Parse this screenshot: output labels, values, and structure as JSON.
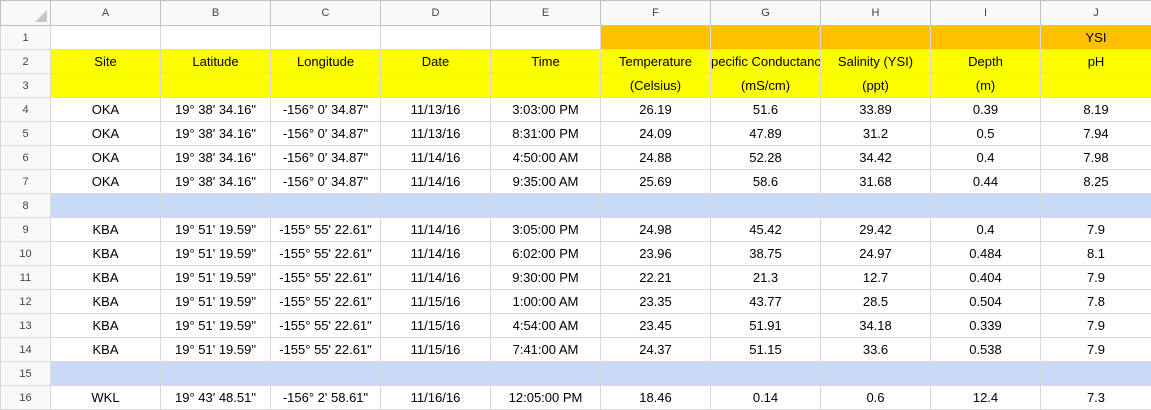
{
  "columns": [
    "A",
    "B",
    "C",
    "D",
    "E",
    "F",
    "G",
    "H",
    "I",
    "J"
  ],
  "row_numbers": [
    "1",
    "2",
    "3",
    "4",
    "5",
    "6",
    "7",
    "8",
    "9",
    "10",
    "11",
    "12",
    "13",
    "14",
    "15",
    "16"
  ],
  "header": {
    "ysi_label": "YSI",
    "row2": [
      "Site",
      "Latitude",
      "Longitude",
      "Date",
      "Time",
      "Temperature",
      "pecific Conductanc",
      "Salinity (YSI)",
      "Depth",
      "pH"
    ],
    "row3": [
      "",
      "",
      "",
      "",
      "",
      "(Celsius)",
      "(mS/cm)",
      "(ppt)",
      "(m)",
      ""
    ]
  },
  "rows": {
    "r4": [
      "OKA",
      "19° 38' 34.16\"",
      "-156° 0' 34.87\"",
      "11/13/16",
      "3:03:00 PM",
      "26.19",
      "51.6",
      "33.89",
      "0.39",
      "8.19"
    ],
    "r5": [
      "OKA",
      "19° 38' 34.16\"",
      "-156° 0' 34.87\"",
      "11/13/16",
      "8:31:00 PM",
      "24.09",
      "47.89",
      "31.2",
      "0.5",
      "7.94"
    ],
    "r6": [
      "OKA",
      "19° 38' 34.16\"",
      "-156° 0' 34.87\"",
      "11/14/16",
      "4:50:00 AM",
      "24.88",
      "52.28",
      "34.42",
      "0.4",
      "7.98"
    ],
    "r7": [
      "OKA",
      "19° 38' 34.16\"",
      "-156° 0' 34.87\"",
      "11/14/16",
      "9:35:00 AM",
      "25.69",
      "58.6",
      "31.68",
      "0.44",
      "8.25"
    ],
    "r9": [
      "KBA",
      "19° 51' 19.59\"",
      "-155° 55' 22.61\"",
      "11/14/16",
      "3:05:00 PM",
      "24.98",
      "45.42",
      "29.42",
      "0.4",
      "7.9"
    ],
    "r10": [
      "KBA",
      "19° 51' 19.59\"",
      "-155° 55' 22.61\"",
      "11/14/16",
      "6:02:00 PM",
      "23.96",
      "38.75",
      "24.97",
      "0.484",
      "8.1"
    ],
    "r11": [
      "KBA",
      "19° 51' 19.59\"",
      "-155° 55' 22.61\"",
      "11/14/16",
      "9:30:00 PM",
      "22.21",
      "21.3",
      "12.7",
      "0.404",
      "7.9"
    ],
    "r12": [
      "KBA",
      "19° 51' 19.59\"",
      "-155° 55' 22.61\"",
      "11/15/16",
      "1:00:00 AM",
      "23.35",
      "43.77",
      "28.5",
      "0.504",
      "7.8"
    ],
    "r13": [
      "KBA",
      "19° 51' 19.59\"",
      "-155° 55' 22.61\"",
      "11/15/16",
      "4:54:00 AM",
      "23.45",
      "51.91",
      "34.18",
      "0.339",
      "7.9"
    ],
    "r14": [
      "KBA",
      "19° 51' 19.59\"",
      "-155° 55' 22.61\"",
      "11/15/16",
      "7:41:00 AM",
      "24.37",
      "51.15",
      "33.6",
      "0.538",
      "7.9"
    ],
    "r16": [
      "WKL",
      "19° 43' 48.51\"",
      "-156° 2' 58.61\"",
      "11/16/16",
      "12:05:00 PM",
      "18.46",
      "0.14",
      "0.6",
      "12.4",
      "7.3"
    ]
  },
  "colors": {
    "orange": "#ffc000",
    "yellow": "#ffff00",
    "separator_blue": "#c9daf8",
    "header_gray": "#f8f9fa"
  }
}
